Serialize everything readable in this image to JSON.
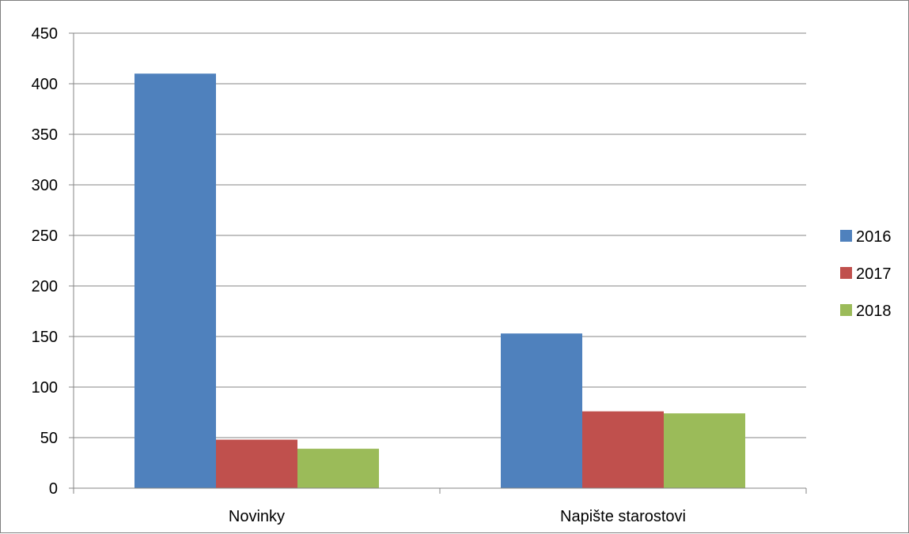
{
  "chart_data": {
    "type": "bar",
    "categories": [
      "Novinky",
      "Napište starostovi"
    ],
    "series": [
      {
        "name": "2016",
        "values": [
          410,
          153
        ],
        "color": "#4f81bd"
      },
      {
        "name": "2017",
        "values": [
          48,
          76
        ],
        "color": "#c0504d"
      },
      {
        "name": "2018",
        "values": [
          39,
          74
        ],
        "color": "#9bbb59"
      }
    ],
    "title": "",
    "xlabel": "",
    "ylabel": "",
    "ylim": [
      0,
      450
    ],
    "yticks": [
      0,
      50,
      100,
      150,
      200,
      250,
      300,
      350,
      400,
      450
    ],
    "grid": true,
    "legend_position": "right",
    "gridline_color": "#868686"
  }
}
